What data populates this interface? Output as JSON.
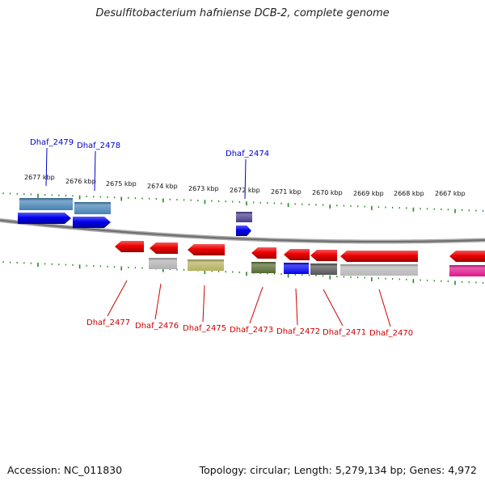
{
  "title": "Desulfitobacterium hafniense DCB-2, complete genome",
  "footer": {
    "accession": "Accession: NC_011830",
    "summary": "Topology: circular; Length: 5,279,134 bp; Genes: 4,972"
  },
  "colors": {
    "forward_label": "#0000cc",
    "reverse_label": "#cc0000",
    "backbone": "#808080",
    "ticks": "#228b22"
  },
  "tick_labels": [
    "2677 kbp",
    "2676 kbp",
    "2675 kbp",
    "2674 kbp",
    "2673 kbp",
    "2672 kbp",
    "2671 kbp",
    "2670 kbp",
    "2669 kbp",
    "2668 kbp",
    "2667 kbp"
  ],
  "forward_genes": [
    {
      "label": "Dhaf_2479",
      "color": "#0000ee",
      "orient": "plus"
    },
    {
      "label": "Dhaf_2478",
      "color": "#0000ee",
      "orient": "plus"
    },
    {
      "label": "Dhaf_2474",
      "color": "#0000ee",
      "orient": "plus"
    }
  ],
  "reverse_genes": [
    {
      "label": "Dhaf_2477",
      "color": "#ee0000",
      "orient": "minus"
    },
    {
      "label": "Dhaf_2476",
      "color": "#ee0000",
      "orient": "minus"
    },
    {
      "label": "Dhaf_2475",
      "color": "#ee0000",
      "orient": "minus"
    },
    {
      "label": "Dhaf_2473",
      "color": "#ee0000",
      "orient": "minus"
    },
    {
      "label": "Dhaf_2472",
      "color": "#ee0000",
      "orient": "minus"
    },
    {
      "label": "Dhaf_2471",
      "color": "#ee0000",
      "orient": "minus"
    },
    {
      "label": "Dhaf_2470",
      "color": "#ee0000",
      "orient": "minus"
    },
    {
      "label": "",
      "color": "#ee0000",
      "orient": "minus"
    }
  ],
  "cog_boxes": [
    {
      "color": "#4682b4"
    },
    {
      "color": "#4682b4"
    },
    {
      "color": "#483d8b"
    },
    {
      "color": "#b0b0b0"
    },
    {
      "color": "#b5b060"
    },
    {
      "color": "#556b2f"
    },
    {
      "color": "#0000ee"
    },
    {
      "color": "#555555"
    },
    {
      "color": "#b8b8b8"
    },
    {
      "color": "#e0158a"
    }
  ]
}
